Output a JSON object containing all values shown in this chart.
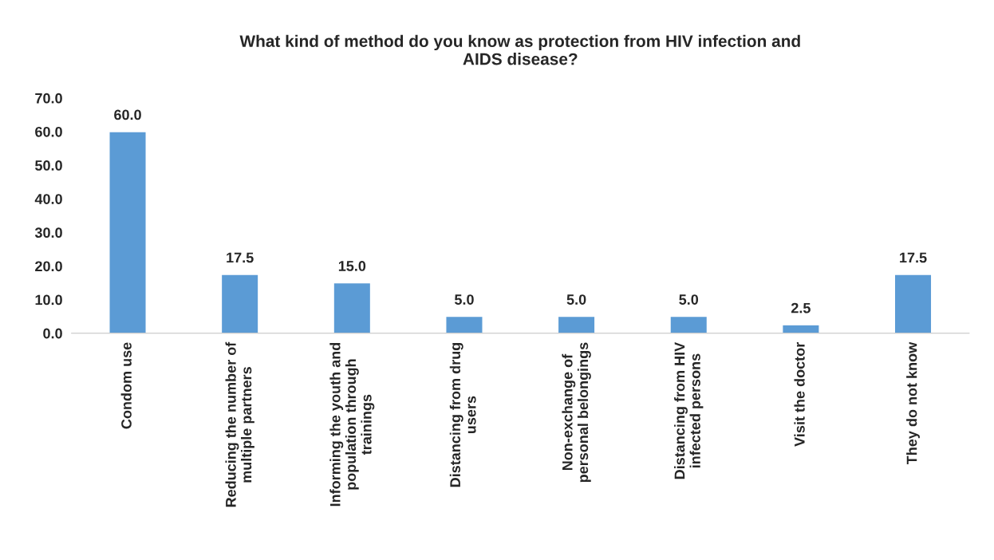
{
  "chart_data": {
    "type": "bar",
    "title": "What kind of method do you know as protection from HIV infection and\nAIDS disease?",
    "categories": [
      "Condom use",
      "Reducing the number of\nmultiple partners",
      "Informing the youth and\npopulation through\ntrainings",
      "Distancing from drug\nusers",
      "Non-exchange of\npersonal belongings",
      "Distancing from HIV\ninfected persons",
      "Visit the doctor",
      "They do not know"
    ],
    "values": [
      60.0,
      17.5,
      15.0,
      5.0,
      5.0,
      5.0,
      2.5,
      17.5
    ],
    "value_labels": [
      "60.0",
      "17.5",
      "15.0",
      "5.0",
      "5.0",
      "5.0",
      "2.5",
      "17.5"
    ],
    "color": "#5b9bd5",
    "ylim": [
      0,
      70
    ],
    "yticks": [
      {
        "value": 0,
        "label": "0.0"
      },
      {
        "value": 10,
        "label": "10.0"
      },
      {
        "value": 20,
        "label": "20.0"
      },
      {
        "value": 30,
        "label": "30.0"
      },
      {
        "value": 40,
        "label": "40.0"
      },
      {
        "value": 50,
        "label": "50.0"
      },
      {
        "value": 60,
        "label": "60.0"
      },
      {
        "value": 70,
        "label": "70.0"
      }
    ],
    "grid": false,
    "legend": false
  }
}
